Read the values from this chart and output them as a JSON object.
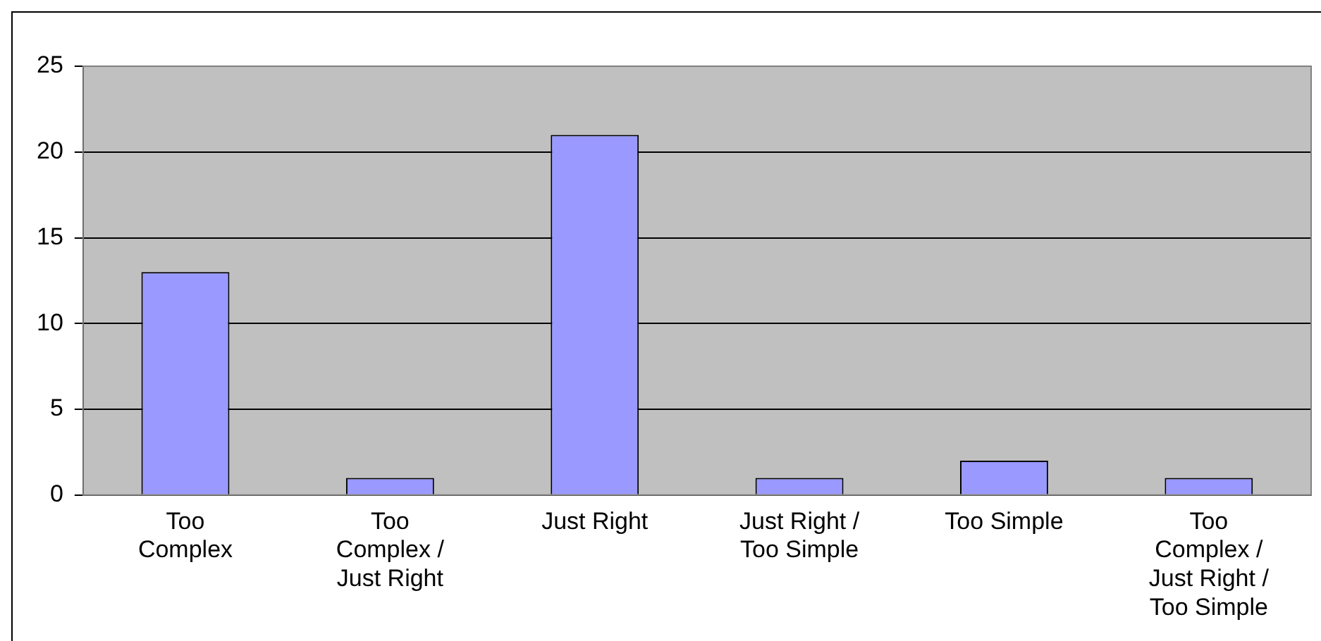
{
  "chart_data": {
    "type": "bar",
    "categories": [
      "Too Complex",
      "Too Complex / Just Right",
      "Just Right",
      "Just Right / Too Simple",
      "Too Simple",
      "Too Complex / Just Right / Too Simple"
    ],
    "values": [
      13,
      1,
      21,
      1,
      2,
      1
    ],
    "color": "#9999ff",
    "ylim": [
      0,
      25
    ],
    "yticks": [
      0,
      5,
      10,
      15,
      20,
      25
    ],
    "grid": "y"
  }
}
